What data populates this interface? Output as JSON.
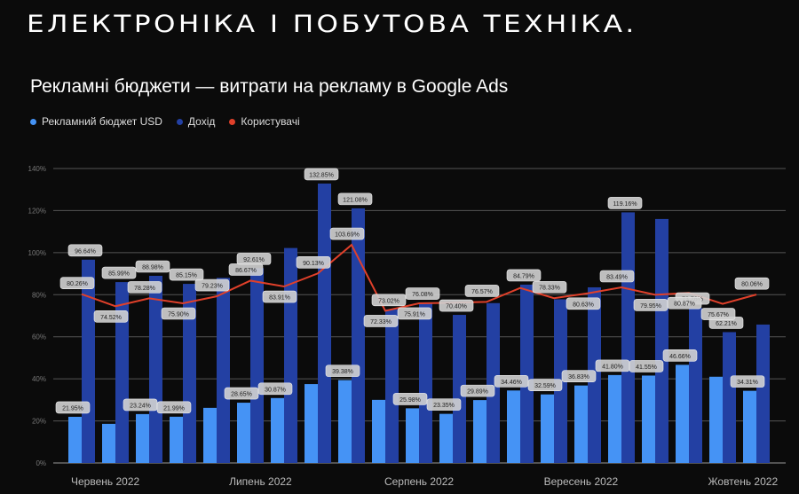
{
  "header": {
    "title": "ЕЛЕКТРОНІКА І ПОБУТОВА ТЕХНІКА.",
    "subtitle": "Рекламні бюджети — витрати на рекламу в Google Ads"
  },
  "colors": {
    "budget": "#4593f5",
    "revenue": "#2340a3",
    "users": "#e0402a",
    "background": "#0b0b0b"
  },
  "chart_data": {
    "type": "bar",
    "title": "Рекламні бюджети — витрати на рекламу в Google Ads",
    "xlabel": "",
    "ylabel": "",
    "ylim": [
      0,
      140
    ],
    "yticks": [
      "0%",
      "20%",
      "40%",
      "60%",
      "80%",
      "100%",
      "120%",
      "140%"
    ],
    "ytick_values": [
      0,
      20,
      40,
      60,
      80,
      100,
      120,
      140
    ],
    "grid": true,
    "legend_position": "top-left",
    "x_ticks": [
      {
        "label": "Червень 2022",
        "at_group": 1.7
      },
      {
        "label": "Липень 2022",
        "at_group": 6.3
      },
      {
        "label": "Серпень 2022",
        "at_group": 11.0
      },
      {
        "label": "Вересень 2022",
        "at_group": 15.8
      },
      {
        "label": "Жовтень 2022",
        "at_group": 20.6
      }
    ],
    "series": [
      {
        "name": "Рекламний бюджет USD",
        "type": "bar",
        "values": [
          21.95,
          18.6,
          23.24,
          21.99,
          26.2,
          28.65,
          30.87,
          37.5,
          39.38,
          30.0,
          25.98,
          23.35,
          29.89,
          34.46,
          32.59,
          36.83,
          41.8,
          41.55,
          46.66,
          41.0,
          34.31
        ],
        "labeled": [
          true,
          false,
          true,
          true,
          false,
          true,
          true,
          false,
          true,
          false,
          true,
          true,
          true,
          true,
          true,
          true,
          true,
          true,
          true,
          false,
          true
        ]
      },
      {
        "name": "Дохід",
        "type": "bar",
        "values": [
          96.64,
          85.99,
          88.98,
          85.15,
          88.0,
          92.61,
          102.2,
          132.85,
          121.08,
          73.02,
          76.08,
          70.4,
          76.0,
          84.79,
          77.8,
          83.5,
          119.16,
          116.0,
          73.76,
          62.21,
          65.8
        ],
        "labeled": [
          true,
          true,
          true,
          true,
          false,
          true,
          false,
          true,
          true,
          true,
          true,
          true,
          false,
          true,
          false,
          false,
          true,
          false,
          true,
          true,
          false
        ]
      },
      {
        "name": "Користувачі",
        "type": "line",
        "values": [
          80.26,
          74.52,
          78.28,
          75.9,
          79.23,
          86.67,
          83.91,
          90.13,
          103.69,
          72.33,
          75.91,
          76.2,
          76.57,
          83.2,
          78.33,
          80.63,
          83.49,
          79.95,
          80.87,
          75.67,
          80.06
        ],
        "labeled": [
          true,
          true,
          true,
          true,
          true,
          true,
          true,
          true,
          true,
          true,
          true,
          false,
          true,
          false,
          true,
          true,
          true,
          true,
          true,
          true,
          true
        ]
      }
    ]
  }
}
